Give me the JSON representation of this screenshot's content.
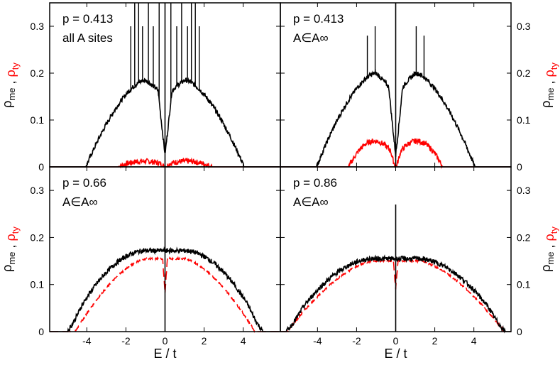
{
  "chart_data": {
    "type": "line",
    "xlabel": "E / t",
    "ylabel_parts": [
      {
        "text": "ρ",
        "sub": "me",
        "color": "#000000"
      },
      {
        "text": " , ",
        "sub": "",
        "color": "#000000"
      },
      {
        "text": "ρ",
        "sub": "ty",
        "color": "#ff0000"
      }
    ],
    "xlim": [
      -5.9,
      5.9
    ],
    "ylim": [
      0,
      0.35
    ],
    "xticks": [
      -4,
      -2,
      0,
      2,
      4
    ],
    "xtick_labels": [
      "-4",
      "-2",
      "0",
      "2",
      "4"
    ],
    "yticks": [
      0,
      0.1,
      0.2,
      0.3
    ],
    "ytick_labels": [
      "0",
      "0.1",
      "0.2",
      "0.3"
    ],
    "colors": {
      "me": "#000000",
      "ty": "#ff0000"
    },
    "panels": [
      {
        "id": "top-left",
        "annotation": [
          "p = 0.413",
          "all A sites"
        ],
        "ty_style": "solid",
        "me_shape": {
          "edge": 4.05,
          "peak": 0.185,
          "dip": 0.13,
          "spikes": [
            [
              -1.75,
              0.3
            ],
            [
              -1.55,
              0.35
            ],
            [
              -1.35,
              0.35
            ],
            [
              -1.15,
              0.3
            ],
            [
              -0.85,
              0.35
            ],
            [
              -0.6,
              0.3
            ],
            [
              -0.3,
              0.35
            ],
            [
              0.3,
              0.35
            ],
            [
              0.6,
              0.3
            ],
            [
              0.85,
              0.35
            ],
            [
              1.15,
              0.3
            ],
            [
              1.35,
              0.35
            ],
            [
              1.55,
              0.35
            ],
            [
              1.75,
              0.3
            ]
          ],
          "zero_spike": 0.35
        },
        "ty_shape": {
          "edge": 2.4,
          "level": 0.012,
          "dip": 0.0
        }
      },
      {
        "id": "top-right",
        "annotation": [
          "p = 0.413",
          "A∈A∞"
        ],
        "ty_style": "solid",
        "me_shape": {
          "edge": 4.05,
          "peak": 0.2,
          "dip": 0.125,
          "spikes": [
            [
              -1.45,
              0.28
            ],
            [
              -1.05,
              0.3
            ],
            [
              1.05,
              0.3
            ],
            [
              1.45,
              0.28
            ]
          ],
          "zero_spike": 0.35
        },
        "ty_shape": {
          "edge": 2.4,
          "level": 0.055,
          "dip": 0.0
        }
      },
      {
        "id": "bottom-left",
        "annotation": [
          "p = 0.66",
          "A∈A∞"
        ],
        "ty_style": "dashed",
        "me_shape": {
          "edge": 5.0,
          "peak": 0.172,
          "dip": 0.175,
          "spikes": [],
          "zero_spike": 0.35
        },
        "ty_shape": {
          "edge": 4.6,
          "level": 0.155,
          "dip": 0.08
        }
      },
      {
        "id": "bottom-right",
        "annotation": [
          "p = 0.86",
          "A∈A∞"
        ],
        "ty_style": "dashed",
        "me_shape": {
          "edge": 5.6,
          "peak": 0.155,
          "dip": 0.155,
          "spikes": [],
          "zero_spike": 0.27
        },
        "ty_shape": {
          "edge": 5.55,
          "level": 0.15,
          "dip": 0.09
        }
      }
    ]
  }
}
